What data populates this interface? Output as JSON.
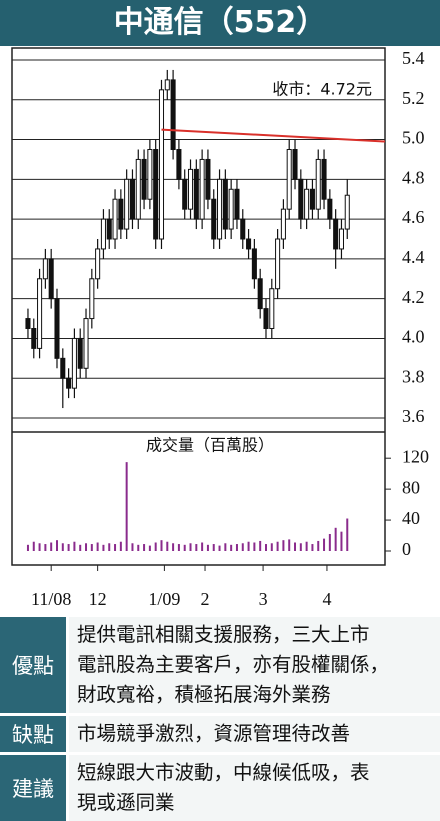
{
  "title": "中通信（552）",
  "chart_data": [
    {
      "type": "candlestick",
      "annotation": "收市：4.72元",
      "xlim": [
        -2.75,
        61.5
      ],
      "xticks": [
        {
          "value": 4,
          "label": "11/08"
        },
        {
          "value": 12,
          "label": "12"
        },
        {
          "value": 23.5,
          "label": "1/09"
        },
        {
          "value": 30.5,
          "label": "2"
        },
        {
          "value": 40.5,
          "label": "3"
        },
        {
          "value": 51.5,
          "label": "4"
        }
      ],
      "ylim": [
        3.6,
        5.4
      ],
      "yticks": [
        5.4,
        5.2,
        {
          "value": 5.0,
          "label": "5.0"
        },
        4.8,
        4.6,
        4.4,
        4.2,
        {
          "value": 4.0,
          "label": "4.0"
        },
        3.8,
        3.6
      ],
      "grid": true,
      "color": "#111111",
      "ohlc": [
        [
          4.1,
          4.15,
          4.0,
          4.05
        ],
        [
          4.05,
          4.1,
          3.9,
          3.95
        ],
        [
          3.95,
          4.35,
          3.9,
          4.3
        ],
        [
          4.3,
          4.45,
          4.25,
          4.4
        ],
        [
          4.4,
          4.45,
          4.15,
          4.2
        ],
        [
          4.2,
          4.25,
          3.85,
          3.9
        ],
        [
          3.9,
          3.95,
          3.65,
          3.8
        ],
        [
          3.8,
          3.85,
          3.7,
          3.75
        ],
        [
          3.75,
          4.05,
          3.7,
          4.0
        ],
        [
          4.0,
          4.05,
          3.8,
          3.85
        ],
        [
          3.85,
          4.15,
          3.8,
          4.1
        ],
        [
          4.1,
          4.35,
          4.05,
          4.3
        ],
        [
          4.3,
          4.5,
          4.25,
          4.45
        ],
        [
          4.45,
          4.65,
          4.4,
          4.6
        ],
        [
          4.6,
          4.65,
          4.45,
          4.5
        ],
        [
          4.5,
          4.75,
          4.45,
          4.7
        ],
        [
          4.7,
          4.75,
          4.5,
          4.55
        ],
        [
          4.55,
          4.85,
          4.5,
          4.8
        ],
        [
          4.8,
          4.85,
          4.55,
          4.6
        ],
        [
          4.6,
          4.95,
          4.55,
          4.9
        ],
        [
          4.9,
          4.95,
          4.65,
          4.7
        ],
        [
          4.7,
          5.0,
          4.65,
          4.95
        ],
        [
          4.95,
          5.0,
          4.45,
          4.5
        ],
        [
          4.5,
          5.3,
          4.45,
          5.25
        ],
        [
          5.25,
          5.35,
          5.2,
          5.3
        ],
        [
          5.3,
          5.35,
          4.9,
          4.95
        ],
        [
          4.95,
          5.0,
          4.75,
          4.8
        ],
        [
          4.8,
          4.85,
          4.6,
          4.65
        ],
        [
          4.65,
          4.9,
          4.6,
          4.85
        ],
        [
          4.85,
          4.9,
          4.55,
          4.6
        ],
        [
          4.6,
          4.95,
          4.55,
          4.9
        ],
        [
          4.9,
          4.95,
          4.65,
          4.7
        ],
        [
          4.7,
          4.75,
          4.45,
          4.5
        ],
        [
          4.5,
          4.85,
          4.45,
          4.8
        ],
        [
          4.8,
          4.85,
          4.5,
          4.55
        ],
        [
          4.55,
          4.8,
          4.5,
          4.75
        ],
        [
          4.75,
          4.8,
          4.55,
          4.6
        ],
        [
          4.6,
          4.65,
          4.45,
          4.5
        ],
        [
          4.5,
          4.55,
          4.4,
          4.45
        ],
        [
          4.45,
          4.5,
          4.25,
          4.3
        ],
        [
          4.3,
          4.35,
          4.1,
          4.15
        ],
        [
          4.15,
          4.2,
          4.0,
          4.05
        ],
        [
          4.05,
          4.3,
          4.0,
          4.25
        ],
        [
          4.25,
          4.55,
          4.2,
          4.5
        ],
        [
          4.5,
          4.7,
          4.45,
          4.65
        ],
        [
          4.65,
          5.0,
          4.6,
          4.95
        ],
        [
          4.95,
          5.0,
          4.75,
          4.8
        ],
        [
          4.8,
          4.85,
          4.55,
          4.6
        ],
        [
          4.6,
          4.8,
          4.55,
          4.75
        ],
        [
          4.75,
          4.8,
          4.6,
          4.65
        ],
        [
          4.65,
          4.95,
          4.6,
          4.9
        ],
        [
          4.9,
          4.95,
          4.65,
          4.7
        ],
        [
          4.7,
          4.75,
          4.55,
          4.6
        ],
        [
          4.6,
          4.65,
          4.35,
          4.45
        ],
        [
          4.45,
          4.6,
          4.4,
          4.55
        ],
        [
          4.55,
          4.8,
          4.5,
          4.72
        ]
      ],
      "trendline": {
        "x": [
          23,
          61.5
        ],
        "values": [
          5.05,
          4.99
        ],
        "color": "#d9302a"
      }
    },
    {
      "type": "bar",
      "title": "成交量（百萬股）",
      "color": "#8a2b8c",
      "ylim": [
        0,
        150
      ],
      "yticks": [
        0,
        40,
        80,
        120
      ],
      "values": [
        8,
        12,
        10,
        9,
        11,
        14,
        10,
        9,
        12,
        8,
        10,
        9,
        11,
        8,
        10,
        9,
        12,
        115,
        10,
        8,
        9,
        7,
        11,
        14,
        12,
        10,
        9,
        8,
        10,
        9,
        11,
        8,
        9,
        7,
        10,
        8,
        9,
        10,
        12,
        11,
        13,
        9,
        10,
        12,
        14,
        15,
        11,
        10,
        12,
        9,
        13,
        16,
        22,
        30,
        25,
        42
      ]
    }
  ],
  "panel": {
    "rows": [
      {
        "label": "優點",
        "lines": [
          "提供電訊相關支援服務，三大上市",
          "電訊股為主要客戶，亦有股權關係，",
          "財政寬裕，積極拓展海外業務"
        ]
      },
      {
        "label": "缺點",
        "lines": [
          "市場競爭激烈，資源管理待改善"
        ]
      },
      {
        "label": "建議",
        "lines": [
          "短線跟大市波動，中線候低吸，表",
          "現或遜同業"
        ]
      }
    ]
  }
}
